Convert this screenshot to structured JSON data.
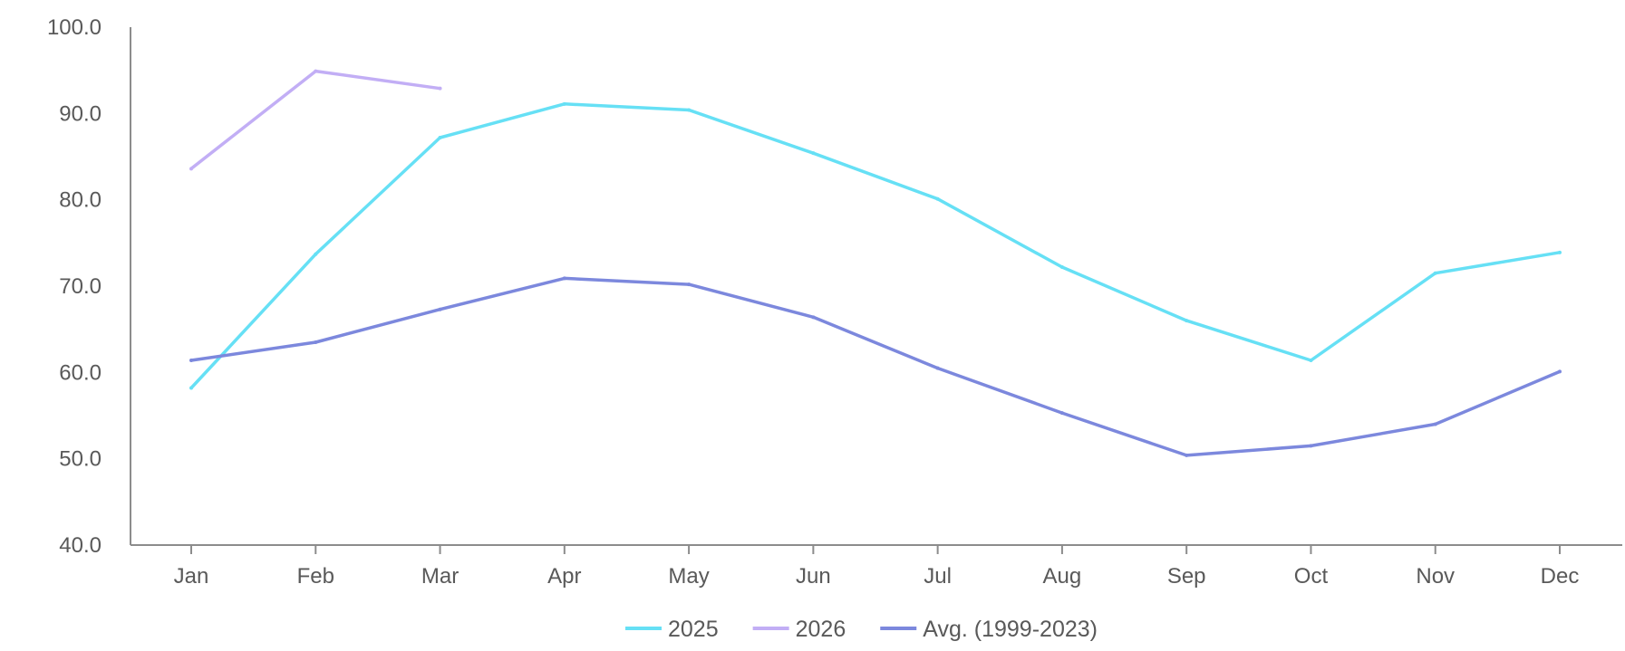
{
  "chart_data": {
    "type": "line",
    "title": "",
    "xlabel": "",
    "ylabel": "",
    "categories": [
      "Jan",
      "Feb",
      "Mar",
      "Apr",
      "May",
      "Jun",
      "Jul",
      "Aug",
      "Sep",
      "Oct",
      "Nov",
      "Dec"
    ],
    "ylim": [
      40,
      100
    ],
    "yticks": [
      "40.0",
      "50.0",
      "60.0",
      "70.0",
      "80.0",
      "90.0",
      "100.0"
    ],
    "grid": false,
    "legend_position": "bottom",
    "series": [
      {
        "name": "2025",
        "color": "#66E0F5",
        "values": [
          58.2,
          73.7,
          87.2,
          91.1,
          90.4,
          85.4,
          80.1,
          72.2,
          66.0,
          61.4,
          71.5,
          73.9
        ]
      },
      {
        "name": "2026",
        "color": "#C2AEF5",
        "values": [
          83.6,
          94.9,
          92.9,
          null,
          null,
          null,
          null,
          null,
          null,
          null,
          null,
          null
        ]
      },
      {
        "name": "Avg. (1999-2023)",
        "color": "#7C88DD",
        "values": [
          61.4,
          63.5,
          67.3,
          70.9,
          70.2,
          66.4,
          60.5,
          55.3,
          50.4,
          51.5,
          54.0,
          60.1
        ]
      }
    ]
  }
}
